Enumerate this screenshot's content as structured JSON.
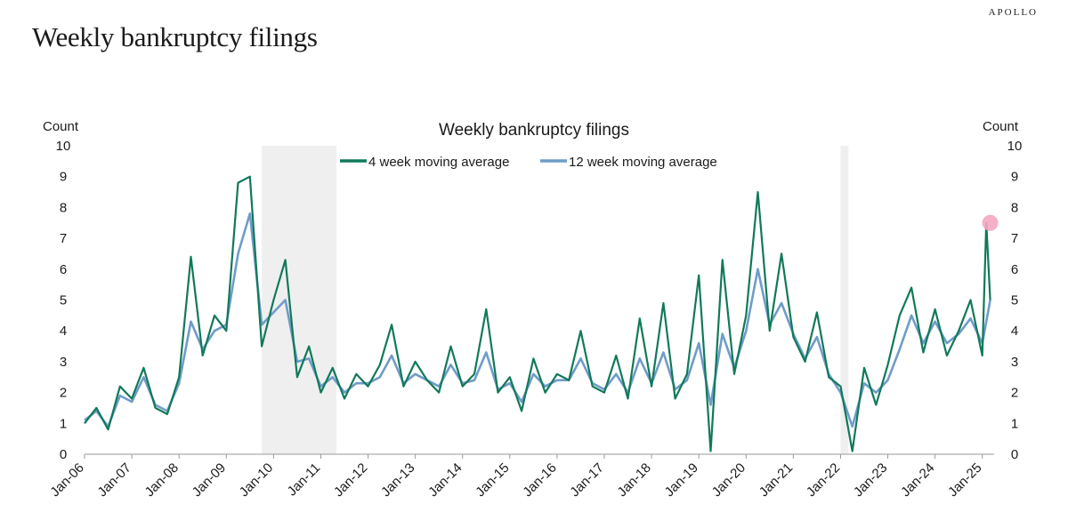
{
  "header": {
    "title": "Weekly bankruptcy filings",
    "brand": "APOLLO"
  },
  "chart_data": {
    "type": "line",
    "title": "Weekly bankruptcy filings",
    "ylabel_left": "Count",
    "ylabel_right": "Count",
    "ylim": [
      0,
      10
    ],
    "yticks": [
      0,
      1,
      2,
      3,
      4,
      5,
      6,
      7,
      8,
      9,
      10
    ],
    "xlim": [
      "2006-01-01",
      "2025-04-01"
    ],
    "xticks": [
      "Jan-06",
      "Jan-07",
      "Jan-08",
      "Jan-09",
      "Jan-10",
      "Jan-11",
      "Jan-12",
      "Jan-13",
      "Jan-14",
      "Jan-15",
      "Jan-16",
      "Jan-17",
      "Jan-18",
      "Jan-19",
      "Jan-20",
      "Jan-21",
      "Jan-22",
      "Jan-23",
      "Jan-24",
      "Jan-25"
    ],
    "legend_position": "top-center",
    "recession_shading": [
      {
        "start": "2009-10-01",
        "end": "2011-05-01"
      },
      {
        "start": "2022-01-01",
        "end": "2022-03-01"
      }
    ],
    "highlight": {
      "x": "2025-03",
      "y": 7.5,
      "color": "#f4a6c0"
    },
    "series": [
      {
        "name": "4 week moving average",
        "color": "#11795a",
        "x": [
          "2006-01",
          "2006-04",
          "2006-07",
          "2006-10",
          "2007-01",
          "2007-04",
          "2007-07",
          "2007-10",
          "2008-01",
          "2008-04",
          "2008-07",
          "2008-10",
          "2009-01",
          "2009-04",
          "2009-07",
          "2009-10",
          "2010-01",
          "2010-04",
          "2010-07",
          "2010-10",
          "2011-01",
          "2011-04",
          "2011-07",
          "2011-10",
          "2012-01",
          "2012-04",
          "2012-07",
          "2012-10",
          "2013-01",
          "2013-04",
          "2013-07",
          "2013-10",
          "2014-01",
          "2014-04",
          "2014-07",
          "2014-10",
          "2015-01",
          "2015-04",
          "2015-07",
          "2015-10",
          "2016-01",
          "2016-04",
          "2016-07",
          "2016-10",
          "2017-01",
          "2017-04",
          "2017-07",
          "2017-10",
          "2018-01",
          "2018-04",
          "2018-07",
          "2018-10",
          "2019-01",
          "2019-04",
          "2019-07",
          "2019-10",
          "2020-01",
          "2020-04",
          "2020-07",
          "2020-10",
          "2021-01",
          "2021-04",
          "2021-07",
          "2021-10",
          "2022-01",
          "2022-04",
          "2022-07",
          "2022-10",
          "2023-01",
          "2023-04",
          "2023-07",
          "2023-10",
          "2024-01",
          "2024-04",
          "2024-07",
          "2024-10",
          "2025-01",
          "2025-02",
          "2025-03"
        ],
        "y": [
          1.0,
          1.5,
          0.8,
          2.2,
          1.8,
          2.8,
          1.5,
          1.3,
          2.5,
          6.4,
          3.2,
          4.5,
          4.0,
          8.8,
          9.0,
          3.5,
          5.0,
          6.3,
          2.5,
          3.5,
          2.0,
          2.8,
          1.8,
          2.6,
          2.2,
          2.9,
          4.2,
          2.2,
          3.0,
          2.4,
          2.0,
          3.5,
          2.2,
          2.6,
          4.7,
          2.0,
          2.5,
          1.4,
          3.1,
          2.0,
          2.6,
          2.4,
          4.0,
          2.2,
          2.0,
          3.2,
          1.8,
          4.4,
          2.2,
          4.9,
          1.8,
          2.6,
          5.8,
          0.1,
          6.3,
          2.6,
          4.5,
          8.5,
          4.0,
          6.5,
          3.8,
          3.0,
          4.6,
          2.5,
          2.2,
          0.1,
          2.8,
          1.6,
          2.9,
          4.5,
          5.4,
          3.3,
          4.7,
          3.2,
          4.0,
          5.0,
          3.2,
          7.5,
          5.0
        ]
      },
      {
        "name": "12 week moving average",
        "color": "#6f9cc8",
        "x": [
          "2006-01",
          "2006-04",
          "2006-07",
          "2006-10",
          "2007-01",
          "2007-04",
          "2007-07",
          "2007-10",
          "2008-01",
          "2008-04",
          "2008-07",
          "2008-10",
          "2009-01",
          "2009-04",
          "2009-07",
          "2009-10",
          "2010-01",
          "2010-04",
          "2010-07",
          "2010-10",
          "2011-01",
          "2011-04",
          "2011-07",
          "2011-10",
          "2012-01",
          "2012-04",
          "2012-07",
          "2012-10",
          "2013-01",
          "2013-04",
          "2013-07",
          "2013-10",
          "2014-01",
          "2014-04",
          "2014-07",
          "2014-10",
          "2015-01",
          "2015-04",
          "2015-07",
          "2015-10",
          "2016-01",
          "2016-04",
          "2016-07",
          "2016-10",
          "2017-01",
          "2017-04",
          "2017-07",
          "2017-10",
          "2018-01",
          "2018-04",
          "2018-07",
          "2018-10",
          "2019-01",
          "2019-04",
          "2019-07",
          "2019-10",
          "2020-01",
          "2020-04",
          "2020-07",
          "2020-10",
          "2021-01",
          "2021-04",
          "2021-07",
          "2021-10",
          "2022-01",
          "2022-04",
          "2022-07",
          "2022-10",
          "2023-01",
          "2023-04",
          "2023-07",
          "2023-10",
          "2024-01",
          "2024-04",
          "2024-07",
          "2024-10",
          "2025-01",
          "2025-02",
          "2025-03"
        ],
        "y": [
          1.1,
          1.4,
          0.9,
          1.9,
          1.7,
          2.5,
          1.6,
          1.4,
          2.3,
          4.3,
          3.4,
          4.0,
          4.2,
          6.5,
          7.8,
          4.2,
          4.6,
          5.0,
          3.0,
          3.1,
          2.2,
          2.5,
          2.0,
          2.3,
          2.3,
          2.5,
          3.2,
          2.3,
          2.6,
          2.4,
          2.2,
          2.9,
          2.3,
          2.4,
          3.3,
          2.1,
          2.3,
          1.7,
          2.6,
          2.2,
          2.4,
          2.4,
          3.1,
          2.3,
          2.1,
          2.6,
          2.0,
          3.1,
          2.3,
          3.3,
          2.1,
          2.4,
          3.6,
          1.6,
          3.9,
          2.8,
          4.0,
          6.0,
          4.2,
          4.9,
          3.9,
          3.1,
          3.8,
          2.6,
          2.0,
          0.9,
          2.3,
          2.0,
          2.4,
          3.4,
          4.5,
          3.6,
          4.3,
          3.6,
          3.9,
          4.4,
          3.6,
          4.3,
          5.0
        ]
      }
    ]
  }
}
